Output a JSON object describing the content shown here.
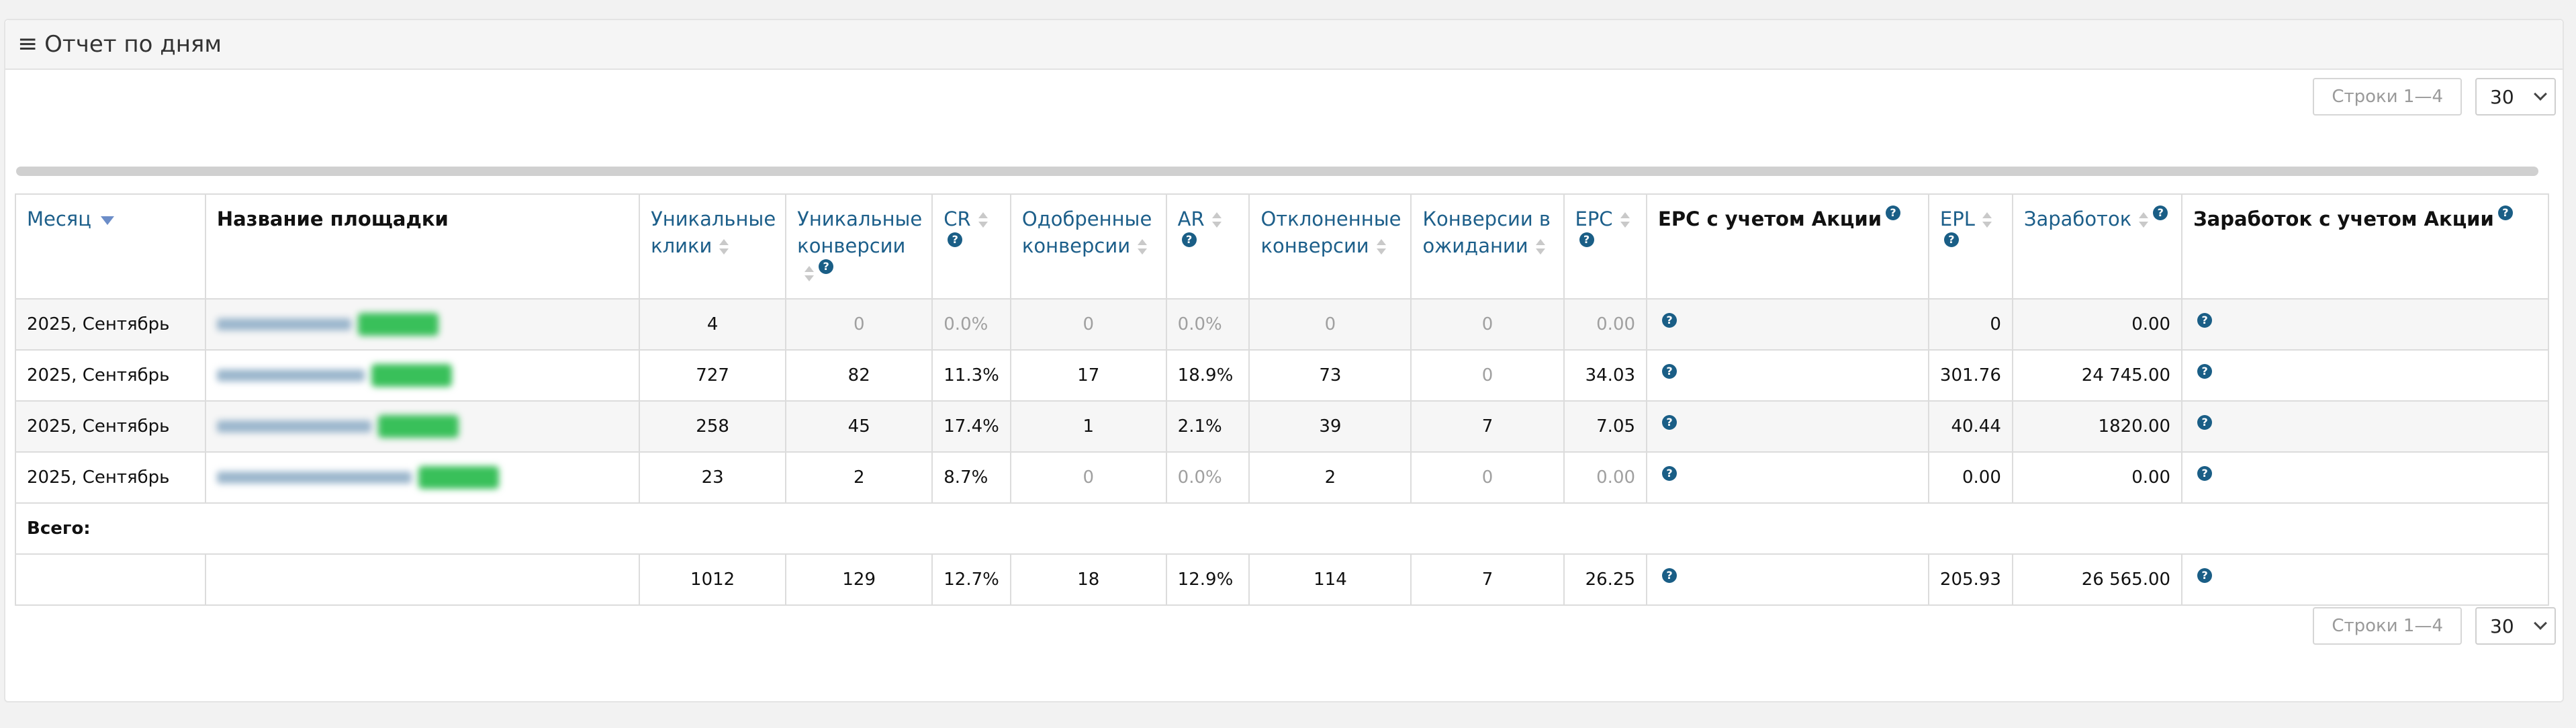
{
  "panel": {
    "title": "Отчет по дням"
  },
  "pager": {
    "rows_label": "Строки 1—4",
    "page_size": "30"
  },
  "columns": [
    {
      "key": "month",
      "label": "Месяц",
      "sortable": true,
      "sorted": "desc",
      "help": false,
      "plain": false
    },
    {
      "key": "site",
      "label": "Название площадки",
      "sortable": false,
      "help": false,
      "plain": true
    },
    {
      "key": "unique_clicks",
      "label": "Уникальные клики",
      "sortable": true,
      "help": false,
      "plain": false
    },
    {
      "key": "unique_conversions",
      "label": "Уникальные конверсии",
      "sortable": true,
      "help": true,
      "plain": false
    },
    {
      "key": "cr",
      "label": "CR",
      "sortable": true,
      "help": true,
      "plain": false
    },
    {
      "key": "approved",
      "label": "Одобренные конверсии",
      "sortable": true,
      "help": false,
      "plain": false
    },
    {
      "key": "ar",
      "label": "AR",
      "sortable": true,
      "help": true,
      "plain": false
    },
    {
      "key": "rejected",
      "label": "Отклоненные конверсии",
      "sortable": true,
      "help": false,
      "plain": false
    },
    {
      "key": "pending",
      "label": "Конверсии в ожидании",
      "sortable": true,
      "help": false,
      "plain": false
    },
    {
      "key": "epc",
      "label": "EPC",
      "sortable": true,
      "help": true,
      "plain": false
    },
    {
      "key": "epc_promo",
      "label": "EPC с учетом Акции",
      "sortable": false,
      "help": true,
      "plain": true
    },
    {
      "key": "epl",
      "label": "EPL",
      "sortable": true,
      "help": true,
      "plain": false
    },
    {
      "key": "earnings",
      "label": "Заработок",
      "sortable": true,
      "help": true,
      "plain": false
    },
    {
      "key": "earnings_promo",
      "label": "Заработок с учетом Акции",
      "sortable": false,
      "help": true,
      "plain": true
    }
  ],
  "rows": [
    {
      "month": "2025, Сентябрь",
      "unique_clicks": "4",
      "unique_conversions": "0",
      "cr": "0.0%",
      "approved": "0",
      "ar": "0.0%",
      "rejected": "0",
      "pending": "0",
      "epc": "0.00",
      "epl": "0",
      "earnings": "0.00"
    },
    {
      "month": "2025, Сентябрь",
      "unique_clicks": "727",
      "unique_conversions": "82",
      "cr": "11.3%",
      "approved": "17",
      "ar": "18.9%",
      "rejected": "73",
      "pending": "0",
      "epc": "34.03",
      "epl": "301.76",
      "earnings": "24 745.00"
    },
    {
      "month": "2025, Сентябрь",
      "unique_clicks": "258",
      "unique_conversions": "45",
      "cr": "17.4%",
      "approved": "1",
      "ar": "2.1%",
      "rejected": "39",
      "pending": "7",
      "epc": "7.05",
      "epl": "40.44",
      "earnings": "1820.00"
    },
    {
      "month": "2025, Сентябрь",
      "unique_clicks": "23",
      "unique_conversions": "2",
      "cr": "8.7%",
      "approved": "0",
      "ar": "0.0%",
      "rejected": "2",
      "pending": "0",
      "epc": "0.00",
      "epl": "0.00",
      "earnings": "0.00"
    }
  ],
  "muted_cells": [
    [
      "unique_conversions",
      "cr",
      "approved",
      "ar",
      "rejected",
      "pending",
      "epc"
    ],
    [
      "pending"
    ],
    [],
    [
      "approved",
      "ar",
      "pending",
      "epc"
    ]
  ],
  "total": {
    "label": "Всего:",
    "unique_clicks": "1012",
    "unique_conversions": "129",
    "cr": "12.7%",
    "approved": "18",
    "ar": "12.9%",
    "rejected": "114",
    "pending": "7",
    "epc": "26.25",
    "epl": "205.93",
    "earnings": "26 565.00"
  },
  "help_glyph": "?"
}
